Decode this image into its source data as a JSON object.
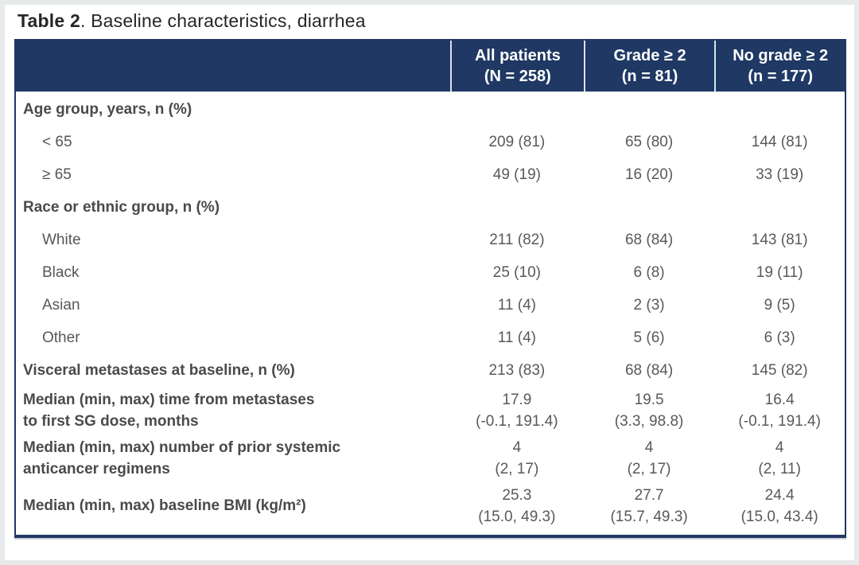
{
  "page": {
    "title_prefix": "Table 2",
    "title_rest": ". Baseline characteristics, diarrhea"
  },
  "colors": {
    "header_bg": "#1f3864",
    "header_text": "#ffffff",
    "body_text": "#595959",
    "table_border": "#1f3864",
    "page_edge": "#e7eaea"
  },
  "table": {
    "header": {
      "columns": [
        "All patients\n(N = 258)",
        "Grade ≥ 2\n(n = 81)",
        "No grade ≥ 2\n(n = 177)"
      ]
    },
    "rows": [
      {
        "label": "Age group, years, n (%)",
        "bold": true,
        "indent": false,
        "values": [
          "",
          "",
          ""
        ]
      },
      {
        "label": "< 65",
        "bold": false,
        "indent": true,
        "values": [
          "209 (81)",
          "65 (80)",
          "144 (81)"
        ]
      },
      {
        "label": "≥ 65",
        "bold": false,
        "indent": true,
        "values": [
          "49 (19)",
          "16 (20)",
          "33 (19)"
        ]
      },
      {
        "label": "Race or ethnic group, n (%)",
        "bold": true,
        "indent": false,
        "values": [
          "",
          "",
          ""
        ]
      },
      {
        "label": "White",
        "bold": false,
        "indent": true,
        "values": [
          "211 (82)",
          "68 (84)",
          "143 (81)"
        ]
      },
      {
        "label": "Black",
        "bold": false,
        "indent": true,
        "values": [
          "25 (10)",
          "6 (8)",
          "19 (11)"
        ]
      },
      {
        "label": "Asian",
        "bold": false,
        "indent": true,
        "values": [
          "11 (4)",
          "2 (3)",
          "9 (5)"
        ]
      },
      {
        "label": "Other",
        "bold": false,
        "indent": true,
        "values": [
          "11 (4)",
          "5 (6)",
          "6 (3)"
        ]
      },
      {
        "label": "Visceral metastases at baseline, n (%)",
        "bold": true,
        "indent": false,
        "values": [
          "213 (83)",
          "68 (84)",
          "145 (82)"
        ]
      },
      {
        "label": "Median (min, max) time from metastases\nto first SG dose, months",
        "bold": true,
        "indent": false,
        "values": [
          "17.9\n(-0.1, 191.4)",
          "19.5\n(3.3, 98.8)",
          "16.4\n(-0.1, 191.4)"
        ]
      },
      {
        "label": "Median (min, max) number of prior systemic\nanticancer regimens",
        "bold": true,
        "indent": false,
        "values": [
          "4\n(2, 17)",
          "4\n(2, 17)",
          "4\n(2, 11)"
        ]
      },
      {
        "label": "Median (min, max) baseline BMI (kg/m²)",
        "bold": true,
        "indent": false,
        "values": [
          "25.3\n(15.0, 49.3)",
          "27.7\n(15.7, 49.3)",
          "24.4\n(15.0, 43.4)"
        ]
      }
    ]
  },
  "chart_data": {
    "type": "table",
    "title": "Table 2. Baseline characteristics, diarrhea",
    "columns": [
      "Characteristic",
      "All patients (N = 258)",
      "Grade ≥ 2 (n = 81)",
      "No grade ≥ 2 (n = 177)"
    ],
    "rows": [
      [
        "Age group, years, n (%)",
        "",
        "",
        ""
      ],
      [
        "< 65",
        "209 (81)",
        "65 (80)",
        "144 (81)"
      ],
      [
        "≥ 65",
        "49 (19)",
        "16 (20)",
        "33 (19)"
      ],
      [
        "Race or ethnic group, n (%)",
        "",
        "",
        ""
      ],
      [
        "White",
        "211 (82)",
        "68 (84)",
        "143 (81)"
      ],
      [
        "Black",
        "25 (10)",
        "6 (8)",
        "19 (11)"
      ],
      [
        "Asian",
        "11 (4)",
        "2 (3)",
        "9 (5)"
      ],
      [
        "Other",
        "11 (4)",
        "5 (6)",
        "6 (3)"
      ],
      [
        "Visceral metastases at baseline, n (%)",
        "213 (83)",
        "68 (84)",
        "145 (82)"
      ],
      [
        "Median (min, max) time from metastases to first SG dose, months",
        "17.9 (-0.1, 191.4)",
        "19.5 (3.3, 98.8)",
        "16.4 (-0.1, 191.4)"
      ],
      [
        "Median (min, max) number of prior systemic anticancer regimens",
        "4 (2, 17)",
        "4 (2, 17)",
        "4 (2, 11)"
      ],
      [
        "Median (min, max) baseline BMI (kg/m²)",
        "25.3 (15.0, 49.3)",
        "27.7 (15.7, 49.3)",
        "24.4 (15.0, 43.4)"
      ]
    ]
  }
}
